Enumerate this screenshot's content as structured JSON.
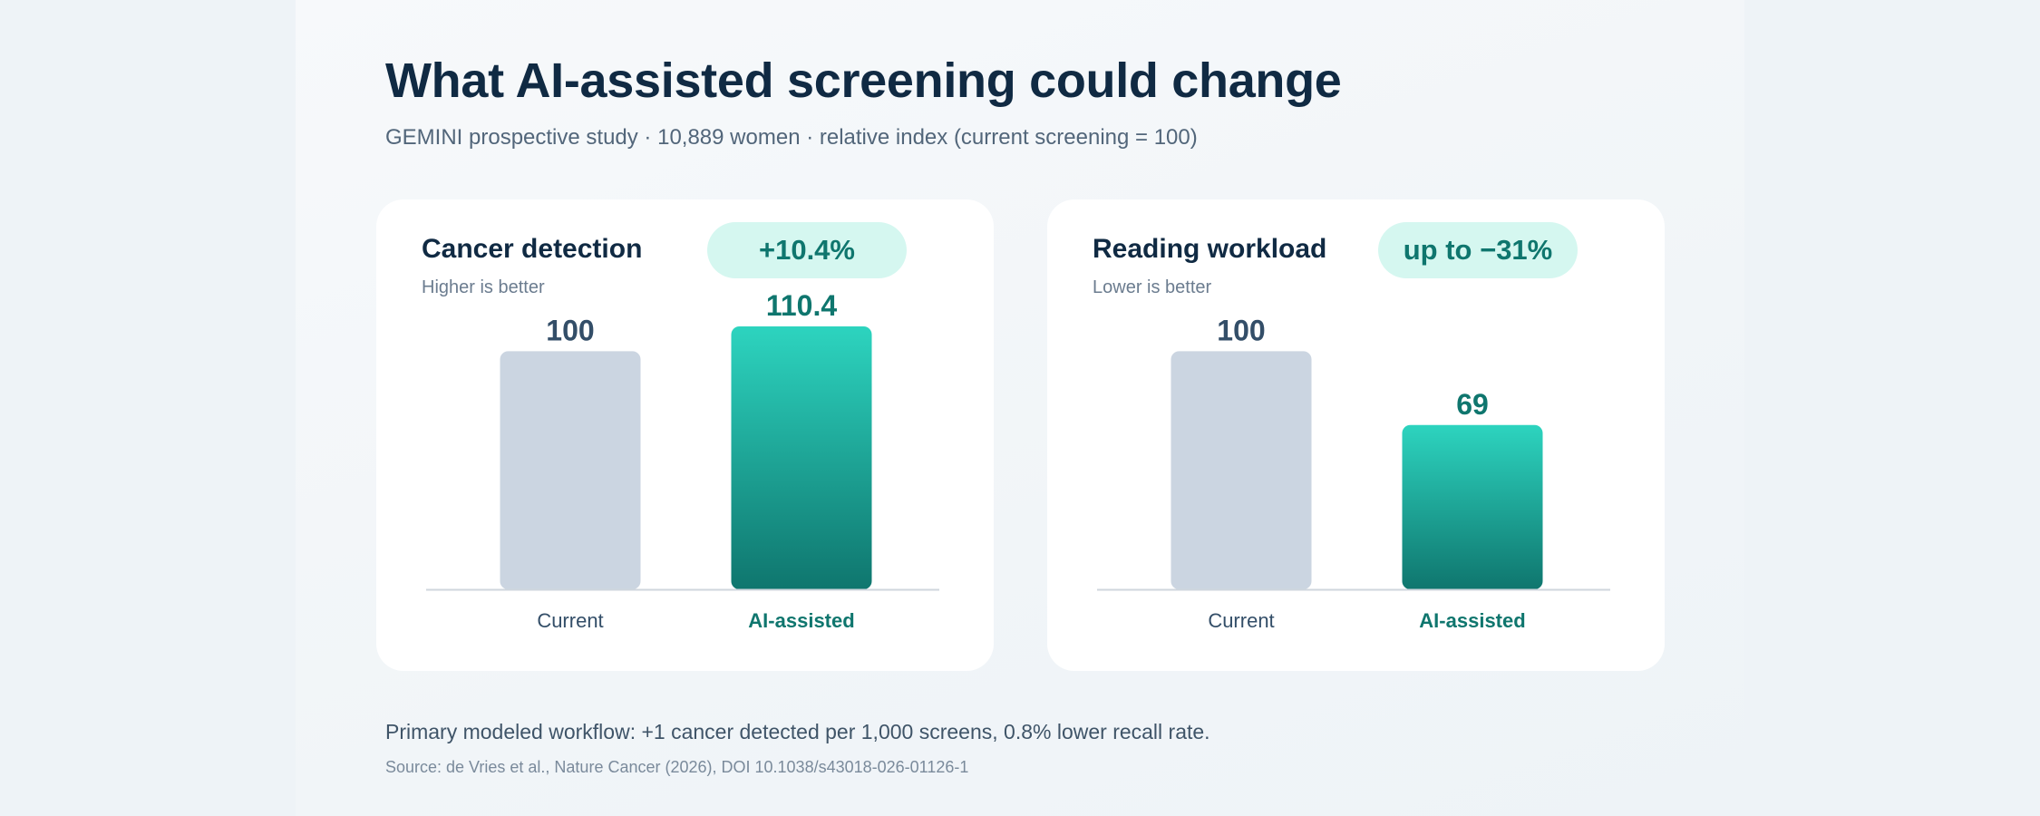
{
  "header": {
    "title": "What AI-assisted screening could change",
    "subtitle": "GEMINI prospective study · 10,889 women · relative index (current screening = 100)"
  },
  "colors": {
    "current_bar": "#cbd5e1",
    "ai_bar_top": "#2dd4bf",
    "ai_bar_bottom": "#0f766e",
    "current_label": "#334e68",
    "ai_label": "#0f766e",
    "badge_bg": "#d5f7f0"
  },
  "chart_data": [
    {
      "type": "bar",
      "title": "Cancer detection",
      "subtitle": "Higher is better",
      "badge": "+10.4%",
      "categories": [
        "Current",
        "AI-assisted"
      ],
      "values": [
        100,
        110.4
      ],
      "value_labels": [
        "100",
        "110.4"
      ],
      "ylim": [
        0,
        110.4
      ],
      "grid": false
    },
    {
      "type": "bar",
      "title": "Reading workload",
      "subtitle": "Lower is better",
      "badge": "up to −31%",
      "categories": [
        "Current",
        "AI-assisted"
      ],
      "values": [
        100,
        69
      ],
      "value_labels": [
        "100",
        "69"
      ],
      "ylim": [
        0,
        110.4
      ],
      "grid": false
    }
  ],
  "footer": {
    "note": "Primary modeled workflow: +1 cancer detected per 1,000 screens, 0.8% lower recall rate.",
    "source": "Source: de Vries et al., Nature Cancer (2026), DOI 10.1038/s43018-026-01126-1"
  }
}
